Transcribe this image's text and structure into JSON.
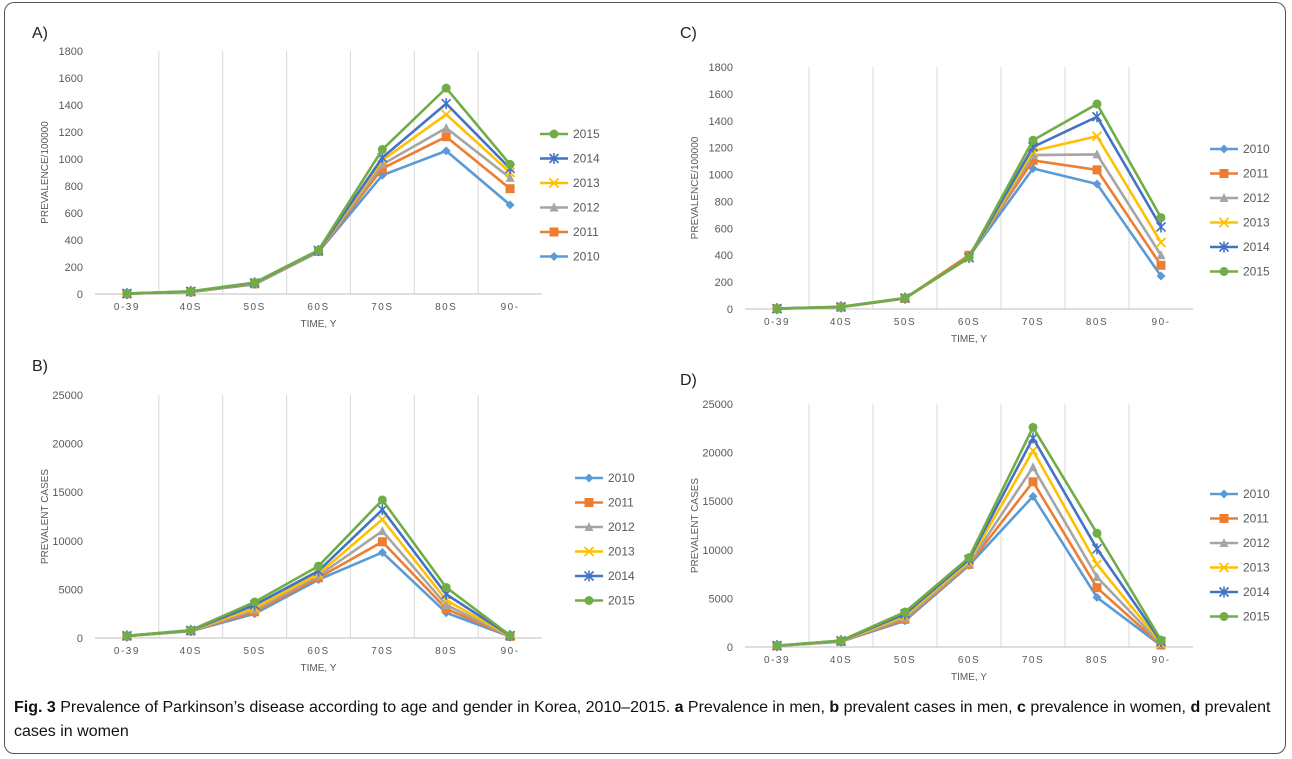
{
  "caption": {
    "fig_label": "Fig. 3",
    "parts": [
      {
        "text": " Prevalence of Parkinson’s disease according to age and gender in Korea, 2010–2015. ",
        "bold": false
      },
      {
        "text": "a",
        "bold": true
      },
      {
        "text": " Prevalence in men, ",
        "bold": false
      },
      {
        "text": "b",
        "bold": true
      },
      {
        "text": " prevalent cases in men, ",
        "bold": false
      },
      {
        "text": "c",
        "bold": true
      },
      {
        "text": " prevalence in women, ",
        "bold": false
      },
      {
        "text": "d",
        "bold": true
      },
      {
        "text": " prevalent cases in women",
        "bold": false
      }
    ]
  },
  "colors": {
    "2010": "#5b9bd5",
    "2011": "#ed7d31",
    "2012": "#a5a5a5",
    "2013": "#ffc000",
    "2014": "#4472c4",
    "2015": "#70ad47"
  },
  "markers": {
    "2010": "diamond",
    "2011": "square",
    "2012": "triangle",
    "2013": "x",
    "2014": "star",
    "2015": "circle"
  },
  "chart_data": [
    {
      "panel": "A)",
      "type": "line",
      "categories": [
        "0-39",
        "40S",
        "50S",
        "60S",
        "70S",
        "80S",
        "90-"
      ],
      "ylabel": "PREVALENCE/100000",
      "xlabel": "TIME, Y",
      "ylim": [
        0,
        1800
      ],
      "yticks": [
        0,
        200,
        400,
        600,
        800,
        1000,
        1200,
        1400,
        1600,
        1800
      ],
      "legend_order": [
        "2015",
        "2014",
        "2013",
        "2012",
        "2011",
        "2010"
      ],
      "series": [
        {
          "name": "2010",
          "values": [
            2,
            15,
            72,
            312,
            880,
            1060,
            660
          ]
        },
        {
          "name": "2011",
          "values": [
            2,
            16,
            75,
            315,
            930,
            1165,
            780
          ]
        },
        {
          "name": "2012",
          "values": [
            2,
            17,
            78,
            318,
            960,
            1230,
            860
          ]
        },
        {
          "name": "2013",
          "values": [
            3,
            18,
            80,
            320,
            990,
            1330,
            900
          ]
        },
        {
          "name": "2014",
          "values": [
            3,
            19,
            82,
            322,
            1010,
            1410,
            930
          ]
        },
        {
          "name": "2015",
          "values": [
            3,
            20,
            85,
            325,
            1070,
            1525,
            960
          ]
        }
      ]
    },
    {
      "panel": "B)",
      "type": "line",
      "categories": [
        "0-39",
        "40S",
        "50S",
        "60S",
        "70S",
        "80S",
        "90-"
      ],
      "ylabel": "PREVALENT CASES",
      "xlabel": "TIME, Y",
      "ylim": [
        0,
        25000
      ],
      "yticks": [
        0,
        5000,
        10000,
        15000,
        20000,
        25000
      ],
      "legend_order": [
        "2010",
        "2011",
        "2012",
        "2013",
        "2014",
        "2015"
      ],
      "series": [
        {
          "name": "2010",
          "values": [
            200,
            700,
            2500,
            6000,
            8800,
            2600,
            150
          ]
        },
        {
          "name": "2011",
          "values": [
            200,
            720,
            2700,
            6200,
            9900,
            3000,
            170
          ]
        },
        {
          "name": "2012",
          "values": [
            210,
            740,
            2900,
            6400,
            11000,
            3400,
            190
          ]
        },
        {
          "name": "2013",
          "values": [
            210,
            760,
            3100,
            6600,
            12200,
            3900,
            210
          ]
        },
        {
          "name": "2014",
          "values": [
            220,
            780,
            3400,
            6900,
            13200,
            4500,
            240
          ]
        },
        {
          "name": "2015",
          "values": [
            220,
            800,
            3700,
            7400,
            14200,
            5200,
            270
          ]
        }
      ]
    },
    {
      "panel": "C)",
      "type": "line",
      "categories": [
        "0-39",
        "40S",
        "50S",
        "60S",
        "70S",
        "80S",
        "90-"
      ],
      "ylabel": "PREVALENCE/100000",
      "xlabel": "TIME, Y",
      "ylim": [
        0,
        1800
      ],
      "yticks": [
        0,
        200,
        400,
        600,
        800,
        1000,
        1200,
        1400,
        1600,
        1800
      ],
      "legend_order": [
        "2010",
        "2011",
        "2012",
        "2013",
        "2014",
        "2015"
      ],
      "series": [
        {
          "name": "2010",
          "values": [
            2,
            14,
            78,
            390,
            1045,
            930,
            245
          ]
        },
        {
          "name": "2011",
          "values": [
            2,
            14,
            79,
            400,
            1105,
            1035,
            325
          ]
        },
        {
          "name": "2012",
          "values": [
            2,
            15,
            80,
            385,
            1145,
            1150,
            400
          ]
        },
        {
          "name": "2013",
          "values": [
            2,
            15,
            80,
            380,
            1175,
            1285,
            495
          ]
        },
        {
          "name": "2014",
          "values": [
            3,
            16,
            81,
            382,
            1205,
            1430,
            610
          ]
        },
        {
          "name": "2015",
          "values": [
            3,
            16,
            82,
            385,
            1255,
            1525,
            680
          ]
        }
      ]
    },
    {
      "panel": "D)",
      "type": "line",
      "categories": [
        "0-39",
        "40S",
        "50S",
        "60S",
        "70S",
        "80S",
        "90-"
      ],
      "ylabel": "PREVALENT CASES",
      "xlabel": "TIME, Y",
      "ylim": [
        0,
        25000
      ],
      "yticks": [
        0,
        5000,
        10000,
        15000,
        20000,
        25000
      ],
      "legend_order": [
        "2010",
        "2011",
        "2012",
        "2013",
        "2014",
        "2015"
      ],
      "series": [
        {
          "name": "2010",
          "values": [
            120,
            550,
            2700,
            8400,
            15500,
            5100,
            150
          ]
        },
        {
          "name": "2011",
          "values": [
            120,
            570,
            2850,
            8500,
            17000,
            6100,
            200
          ]
        },
        {
          "name": "2012",
          "values": [
            130,
            590,
            3000,
            8600,
            18500,
            7200,
            300
          ]
        },
        {
          "name": "2013",
          "values": [
            130,
            610,
            3200,
            8800,
            20200,
            8500,
            420
          ]
        },
        {
          "name": "2014",
          "values": [
            140,
            640,
            3400,
            9000,
            21500,
            10100,
            560
          ]
        },
        {
          "name": "2015",
          "values": [
            140,
            660,
            3600,
            9200,
            22600,
            11700,
            720
          ]
        }
      ]
    }
  ]
}
